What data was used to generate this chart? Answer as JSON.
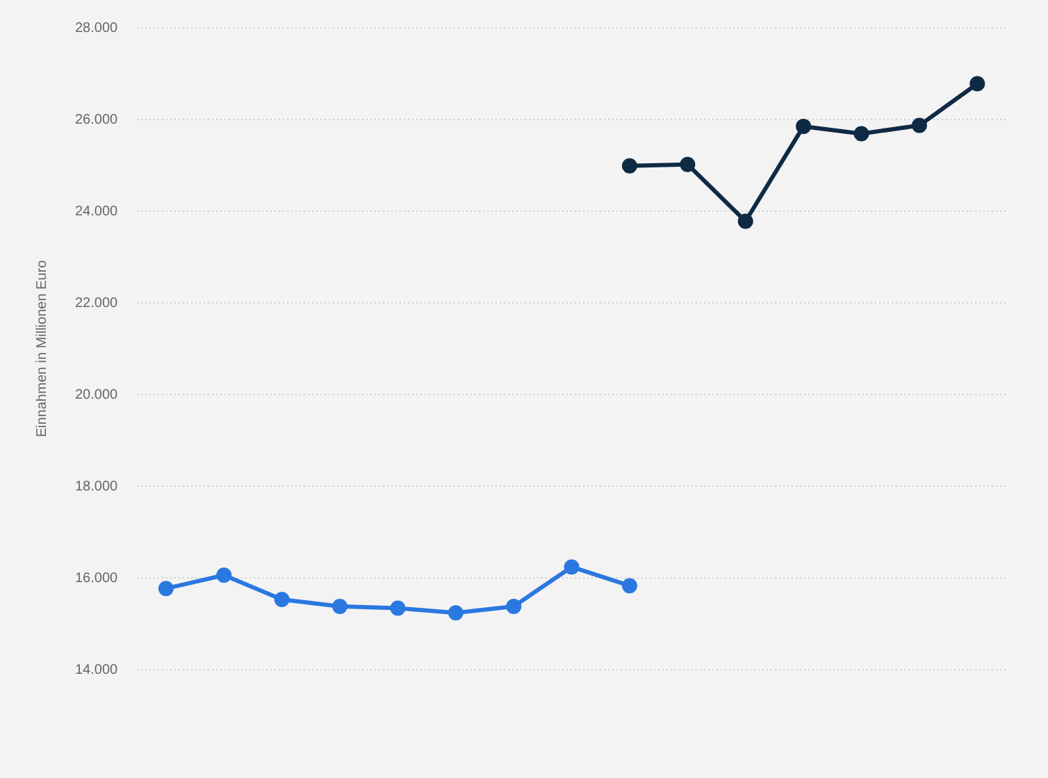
{
  "chart_data": {
    "type": "line",
    "ylabel": "Einnahmen in Millionen Euro",
    "categories": [
      null,
      null,
      null,
      null,
      null,
      null,
      null,
      null,
      null,
      null,
      null,
      null,
      null,
      null,
      null
    ],
    "series": [
      {
        "color": "#2a78e0",
        "values": [
          15770,
          16060,
          15530,
          15380,
          15340,
          15240,
          15380,
          16240,
          15830,
          null,
          null,
          null,
          null,
          null,
          null
        ]
      },
      {
        "color": "#0f2a44",
        "values": [
          null,
          null,
          null,
          null,
          null,
          null,
          null,
          null,
          24990,
          25020,
          23780,
          25850,
          25690,
          25870,
          26780
        ]
      }
    ],
    "ylim": [
      14000,
      28000
    ],
    "yticks": [
      {
        "value": 14000,
        "label": "14.000"
      },
      {
        "value": 16000,
        "label": "16.000"
      },
      {
        "value": 18000,
        "label": "18.000"
      },
      {
        "value": 20000,
        "label": "20.000"
      },
      {
        "value": 22000,
        "label": "22.000"
      },
      {
        "value": 24000,
        "label": "24.000"
      },
      {
        "value": 26000,
        "label": "26.000"
      },
      {
        "value": 28000,
        "label": "28.000"
      }
    ],
    "grid": "y",
    "tick_labels": "y",
    "marker": "circle",
    "line_style": "solid"
  }
}
